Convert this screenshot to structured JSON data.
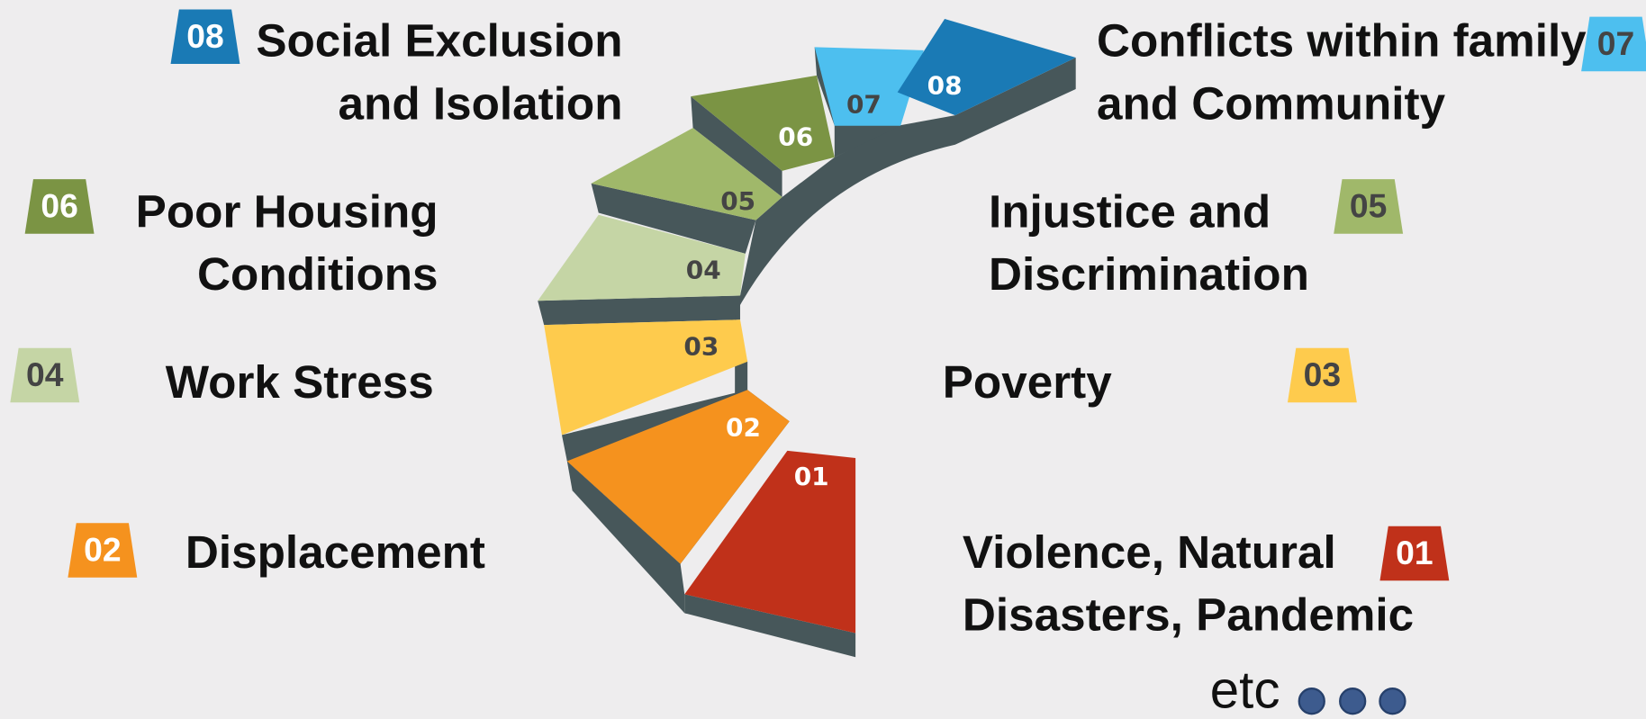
{
  "items": [
    {
      "number": "01",
      "label": [
        "Violence, Natural",
        "Disasters, Pandemic"
      ]
    },
    {
      "number": "02",
      "label": [
        "Displacement"
      ]
    },
    {
      "number": "03",
      "label": [
        "Poverty"
      ]
    },
    {
      "number": "04",
      "label": [
        "Work Stress"
      ]
    },
    {
      "number": "05",
      "label": [
        "Injustice and",
        "Discrimination"
      ]
    },
    {
      "number": "06",
      "label": [
        "Poor Housing",
        "Conditions"
      ]
    },
    {
      "number": "07",
      "label": [
        "Conflicts within family",
        "and Community"
      ]
    },
    {
      "number": "08",
      "label": [
        "Social Exclusion",
        "and Isolation"
      ]
    }
  ],
  "footer": "etc"
}
